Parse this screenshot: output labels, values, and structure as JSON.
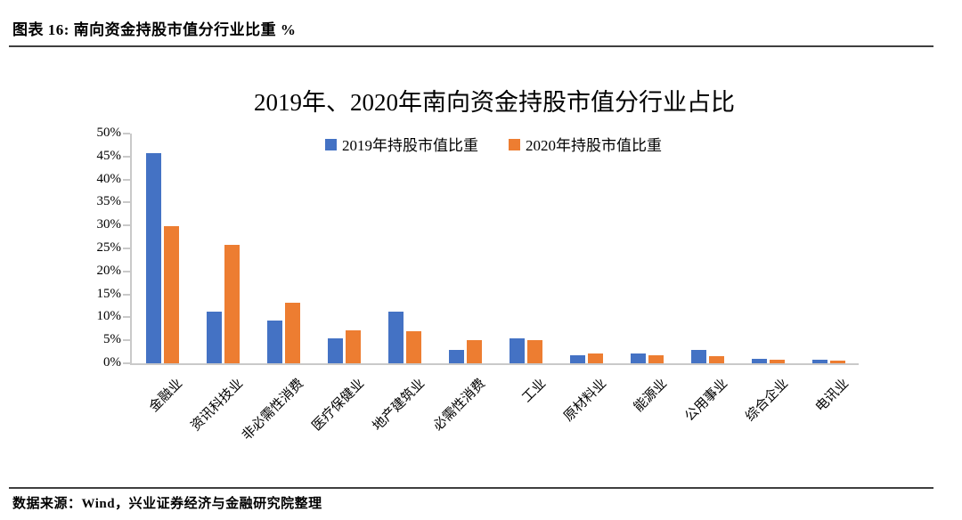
{
  "header": {
    "caption": "图表 16: 南向资金持股市值分行业比重 %"
  },
  "chart_data": {
    "type": "bar",
    "title": "2019年、2020年南向资金持股市值分行业占比",
    "categories": [
      "金融业",
      "资讯科技业",
      "非必需性消费",
      "医疗保健业",
      "地产建筑业",
      "必需性消费",
      "工业",
      "原材料业",
      "能源业",
      "公用事业",
      "综合企业",
      "电讯业"
    ],
    "series": [
      {
        "name": "2019年持股市值比重",
        "color": "#4472C4",
        "values": [
          45.8,
          11.3,
          9.4,
          5.5,
          11.2,
          3.0,
          5.5,
          1.7,
          2.2,
          2.9,
          1.0,
          0.7
        ]
      },
      {
        "name": "2020年持股市值比重",
        "color": "#ED7D31",
        "values": [
          29.9,
          25.8,
          13.2,
          7.1,
          7.0,
          5.1,
          5.0,
          2.1,
          1.8,
          1.6,
          0.8,
          0.6
        ]
      }
    ],
    "xlabel": "",
    "ylabel": "",
    "ylim": [
      0,
      50
    ],
    "ytick_step": 5,
    "ytick_labels": [
      "0%",
      "5%",
      "10%",
      "15%",
      "20%",
      "25%",
      "30%",
      "35%",
      "40%",
      "45%",
      "50%"
    ],
    "grid": false,
    "legend_position": "top-center"
  },
  "footer": {
    "source": "数据来源：Wind，兴业证券经济与金融研究院整理"
  },
  "colors": {
    "series_2019": "#4472C4",
    "series_2020": "#ED7D31",
    "axis": "#C9C9C9",
    "rule": "#3F3F3F"
  }
}
